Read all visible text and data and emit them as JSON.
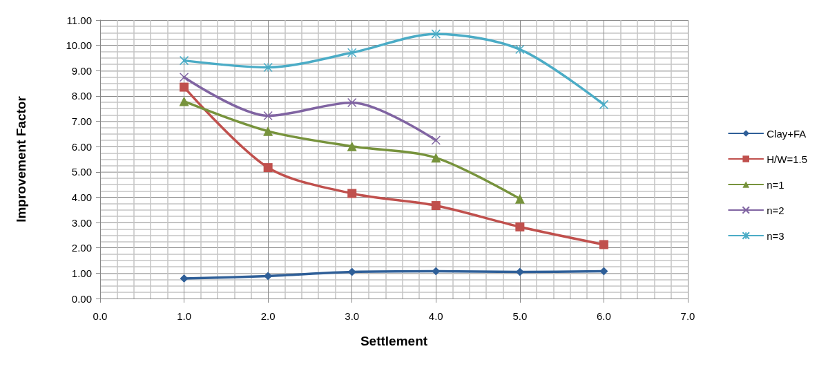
{
  "chart_data": {
    "type": "line",
    "xlabel": "Settlement",
    "ylabel": "Improvement Factor",
    "x": [
      1,
      2,
      3,
      4,
      5,
      6
    ],
    "xlim": [
      0,
      7
    ],
    "xticks": [
      {
        "value": 0,
        "label": "0.0"
      },
      {
        "value": 1,
        "label": "1.0"
      },
      {
        "value": 2,
        "label": "2.0"
      },
      {
        "value": 3,
        "label": "3.0"
      },
      {
        "value": 4,
        "label": "4.0"
      },
      {
        "value": 5,
        "label": "5.0"
      },
      {
        "value": 6,
        "label": "6.0"
      },
      {
        "value": 7,
        "label": "7.0"
      }
    ],
    "ylim": [
      0,
      11
    ],
    "yticks": [
      {
        "value": 0,
        "label": "0.00"
      },
      {
        "value": 1,
        "label": "1.00"
      },
      {
        "value": 2,
        "label": "2.00"
      },
      {
        "value": 3,
        "label": "3.00"
      },
      {
        "value": 4,
        "label": "4.00"
      },
      {
        "value": 5,
        "label": "5.00"
      },
      {
        "value": 6,
        "label": "6.00"
      },
      {
        "value": 7,
        "label": "7.00"
      },
      {
        "value": 8,
        "label": "8.00"
      },
      {
        "value": 9,
        "label": "9.00"
      },
      {
        "value": 10,
        "label": "10.00"
      },
      {
        "value": 11,
        "label": "11.00"
      }
    ],
    "grid": true,
    "legend": "right",
    "line_style": "solid",
    "series": [
      {
        "name": "Clay+FA",
        "color": "#2f5f98",
        "marker": "diamond",
        "values": [
          0.79,
          0.89,
          1.05,
          1.08,
          1.05,
          1.08
        ]
      },
      {
        "name": "H/W=1.5",
        "color": "#c0504d",
        "marker": "square",
        "values": [
          8.35,
          5.17,
          4.15,
          3.67,
          2.83,
          2.13
        ]
      },
      {
        "name": "n=1",
        "color": "#77933c",
        "marker": "triangle",
        "values": [
          7.79,
          6.61,
          6.01,
          5.56,
          3.94,
          null
        ]
      },
      {
        "name": "n=2",
        "color": "#8064a2",
        "marker": "cross",
        "values": [
          8.74,
          7.22,
          7.74,
          6.25,
          null,
          null
        ]
      },
      {
        "name": "n=3",
        "color": "#4bacc6",
        "marker": "cross",
        "values": [
          9.4,
          9.13,
          9.71,
          10.45,
          9.84,
          7.66
        ]
      }
    ]
  }
}
